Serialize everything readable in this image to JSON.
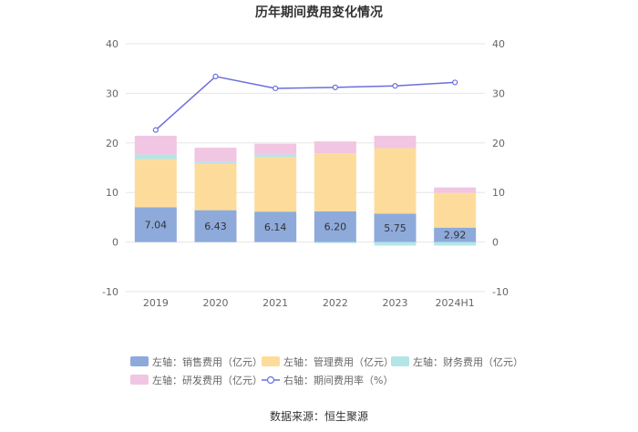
{
  "chart_data": {
    "type": "bar",
    "stacked": true,
    "title": "历年期间费用变化情况",
    "categories": [
      "2019",
      "2020",
      "2021",
      "2022",
      "2023",
      "2024H1"
    ],
    "y_left": {
      "lim": [
        -10,
        40
      ],
      "ticks": [
        "-10",
        "0",
        "10",
        "20",
        "30",
        "40"
      ]
    },
    "y_right": {
      "lim": [
        -10,
        40
      ],
      "ticks": [
        "-10",
        "0",
        "10",
        "20",
        "30",
        "40"
      ]
    },
    "series": [
      {
        "name": "左轴：销售费用（亿元）",
        "type": "bar",
        "color": "#8eaadb",
        "values": [
          7.04,
          6.43,
          6.14,
          6.2,
          5.75,
          2.92
        ],
        "labels": [
          "7.04",
          "6.43",
          "6.14",
          "6.20",
          "5.75",
          "2.92"
        ]
      },
      {
        "name": "左轴：管理费用（亿元）",
        "type": "bar",
        "color": "#fddc9b",
        "values": [
          9.7,
          9.4,
          11.0,
          11.7,
          13.2,
          7.0
        ]
      },
      {
        "name": "左轴：财务费用（亿元）",
        "type": "bar",
        "color": "#b3e6e6",
        "values": [
          0.9,
          0.3,
          0.5,
          -0.2,
          -0.7,
          -0.7
        ]
      },
      {
        "name": "左轴：研发费用（亿元）",
        "type": "bar",
        "color": "#f0c6e2",
        "values": [
          3.8,
          2.9,
          2.2,
          2.4,
          2.5,
          1.1
        ]
      },
      {
        "name": "右轴：期间费用率（%）",
        "type": "line",
        "color": "#6b6fdb",
        "axis": "right",
        "values": [
          22.6,
          33.4,
          31.0,
          31.2,
          31.5,
          32.2
        ]
      }
    ],
    "legend_position": "bottom",
    "source": "数据来源：恒生聚源"
  }
}
